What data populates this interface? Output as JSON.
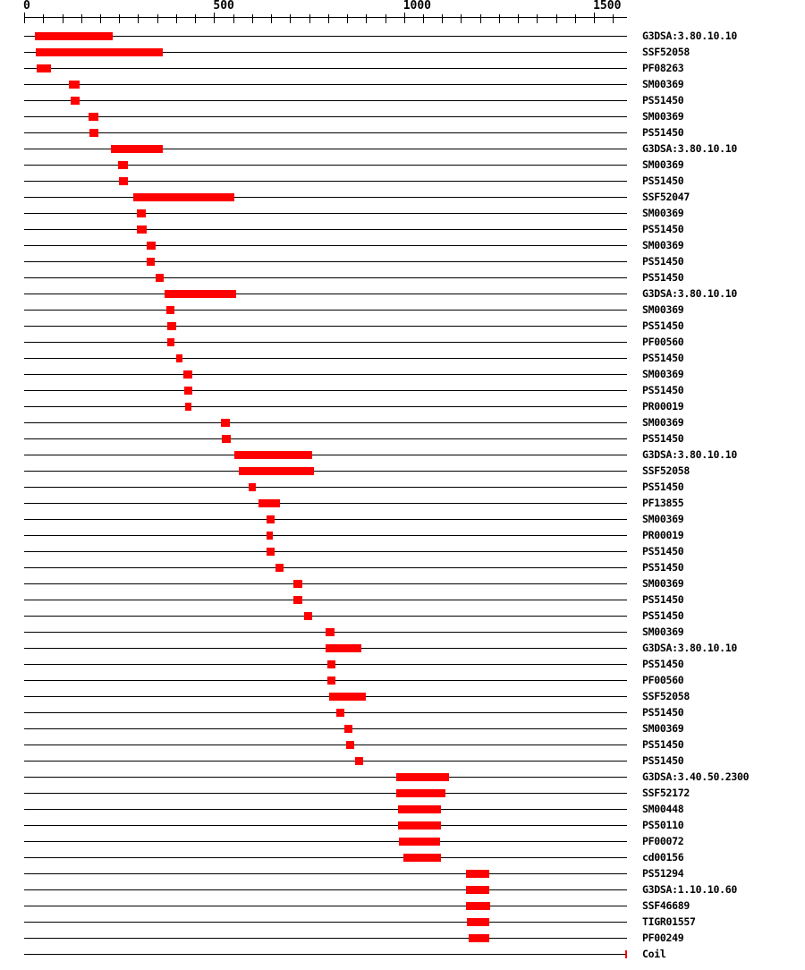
{
  "chart_data": {
    "type": "bar",
    "subtype": "protein-domain-architecture",
    "orientation": "horizontal-range",
    "title": "",
    "xlabel": "",
    "ylabel": "",
    "grid": false,
    "legend": false,
    "axis": {
      "min": 0,
      "max": 1587,
      "major_ticks": [
        0,
        500,
        1000,
        1500
      ],
      "tick_labels": [
        "0",
        "500",
        "1000",
        "1500"
      ],
      "minor_tick_step": 50,
      "minor_tick_max": 1550
    },
    "colors": {
      "bar": "#ff0000",
      "line": "#000000",
      "text": "#000000",
      "background": "#ffffff"
    },
    "rows": [
      {
        "label": "G3DSA:3.80.10.10",
        "start": 29,
        "end": 233
      },
      {
        "label": "SSF52058",
        "start": 31,
        "end": 365
      },
      {
        "label": "PF08263",
        "start": 33,
        "end": 70
      },
      {
        "label": "SM00369",
        "start": 118,
        "end": 145
      },
      {
        "label": "PS51450",
        "start": 122,
        "end": 145
      },
      {
        "label": "SM00369",
        "start": 170,
        "end": 195
      },
      {
        "label": "PS51450",
        "start": 172,
        "end": 195
      },
      {
        "label": "G3DSA:3.80.10.10",
        "start": 229,
        "end": 366
      },
      {
        "label": "SM00369",
        "start": 246,
        "end": 272
      },
      {
        "label": "PS51450",
        "start": 250,
        "end": 274
      },
      {
        "label": "SSF52047",
        "start": 288,
        "end": 553
      },
      {
        "label": "SM00369",
        "start": 296,
        "end": 321
      },
      {
        "label": "PS51450",
        "start": 297,
        "end": 323
      },
      {
        "label": "SM00369",
        "start": 323,
        "end": 346
      },
      {
        "label": "PS51450",
        "start": 323,
        "end": 344
      },
      {
        "label": "PS51450",
        "start": 347,
        "end": 368
      },
      {
        "label": "G3DSA:3.80.10.10",
        "start": 370,
        "end": 558
      },
      {
        "label": "SM00369",
        "start": 374,
        "end": 396
      },
      {
        "label": "PS51450",
        "start": 376,
        "end": 400
      },
      {
        "label": "PF00560",
        "start": 376,
        "end": 396
      },
      {
        "label": "PS51450",
        "start": 400,
        "end": 417
      },
      {
        "label": "SM00369",
        "start": 420,
        "end": 442
      },
      {
        "label": "PS51450",
        "start": 421,
        "end": 443
      },
      {
        "label": "PR00019",
        "start": 424,
        "end": 440
      },
      {
        "label": "SM00369",
        "start": 517,
        "end": 542
      },
      {
        "label": "PS51450",
        "start": 521,
        "end": 545
      },
      {
        "label": "G3DSA:3.80.10.10",
        "start": 554,
        "end": 758
      },
      {
        "label": "SSF52058",
        "start": 564,
        "end": 764
      },
      {
        "label": "PS51450",
        "start": 590,
        "end": 611
      },
      {
        "label": "PF13855",
        "start": 617,
        "end": 673
      },
      {
        "label": "SM00369",
        "start": 637,
        "end": 660
      },
      {
        "label": "PR00019",
        "start": 637,
        "end": 654
      },
      {
        "label": "PS51450",
        "start": 639,
        "end": 659
      },
      {
        "label": "PS51450",
        "start": 662,
        "end": 684
      },
      {
        "label": "SM00369",
        "start": 709,
        "end": 732
      },
      {
        "label": "PS51450",
        "start": 709,
        "end": 733
      },
      {
        "label": "PS51450",
        "start": 737,
        "end": 757
      },
      {
        "label": "SM00369",
        "start": 793,
        "end": 817
      },
      {
        "label": "G3DSA:3.80.10.10",
        "start": 793,
        "end": 888
      },
      {
        "label": "PS51450",
        "start": 797,
        "end": 819
      },
      {
        "label": "PF00560",
        "start": 798,
        "end": 819
      },
      {
        "label": "SSF52058",
        "start": 802,
        "end": 899
      },
      {
        "label": "PS51450",
        "start": 821,
        "end": 843
      },
      {
        "label": "SM00369",
        "start": 843,
        "end": 865
      },
      {
        "label": "PS51450",
        "start": 847,
        "end": 869
      },
      {
        "label": "PS51450",
        "start": 872,
        "end": 892
      },
      {
        "label": "G3DSA:3.40.50.2300",
        "start": 979,
        "end": 1118
      },
      {
        "label": "SSF52172",
        "start": 979,
        "end": 1109
      },
      {
        "label": "SM00448",
        "start": 984,
        "end": 1098
      },
      {
        "label": "PS50110",
        "start": 983,
        "end": 1098
      },
      {
        "label": "PF00072",
        "start": 986,
        "end": 1095
      },
      {
        "label": "cd00156",
        "start": 998,
        "end": 1098
      },
      {
        "label": "PS51294",
        "start": 1163,
        "end": 1225
      },
      {
        "label": "G3DSA:1.10.10.60",
        "start": 1163,
        "end": 1225
      },
      {
        "label": "SSF46689",
        "start": 1163,
        "end": 1228
      },
      {
        "label": "TIGR01557",
        "start": 1165,
        "end": 1224
      },
      {
        "label": "PF00249",
        "start": 1170,
        "end": 1224
      },
      {
        "label": "Coil",
        "start": 1582,
        "end": 1587,
        "marker": "tick"
      }
    ]
  }
}
